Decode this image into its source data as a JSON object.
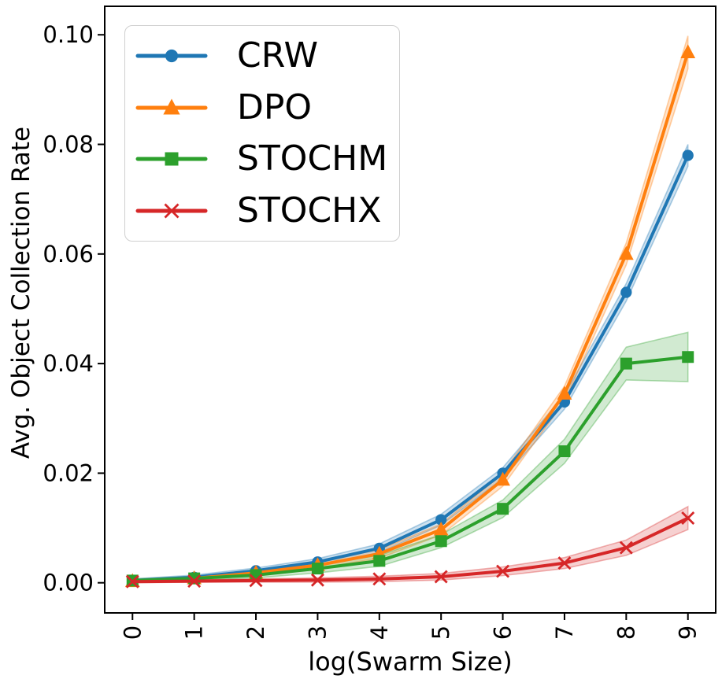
{
  "figure": {
    "background": "#ffffff",
    "spine_color": "#000000",
    "tick_color": "#000000"
  },
  "chart_data": {
    "type": "line",
    "title": "",
    "xlabel": "log(Swarm Size)",
    "ylabel": "Avg. Object Collection Rate",
    "xlim": [
      -0.45,
      9.45
    ],
    "ylim": [
      -0.0055,
      0.1052
    ],
    "grid": false,
    "legend_position": "upper left",
    "band_opacity": 0.22,
    "x": [
      0,
      1,
      2,
      3,
      4,
      5,
      6,
      7,
      8,
      9
    ],
    "xtick_labels": [
      "0",
      "1",
      "2",
      "3",
      "4",
      "5",
      "6",
      "7",
      "8",
      "9"
    ],
    "xtick_rotation": 90,
    "ytick_values": [
      0.0,
      0.02,
      0.04,
      0.06,
      0.08,
      0.1
    ],
    "ytick_labels": [
      "0.00",
      "0.02",
      "0.04",
      "0.06",
      "0.08",
      "0.10"
    ],
    "series": [
      {
        "name": "CRW",
        "color": "#1f77b4",
        "marker": "circle",
        "values": [
          0.0004,
          0.001,
          0.0022,
          0.0038,
          0.0063,
          0.0115,
          0.02,
          0.033,
          0.053,
          0.078
        ],
        "band": [
          0.0003,
          0.0004,
          0.0005,
          0.0006,
          0.0008,
          0.001,
          0.001,
          0.0013,
          0.0016,
          0.002
        ]
      },
      {
        "name": "DPO",
        "color": "#ff7f0e",
        "marker": "triangle-up",
        "values": [
          0.0003,
          0.0008,
          0.0018,
          0.0032,
          0.0053,
          0.0097,
          0.0188,
          0.0345,
          0.06,
          0.0968
        ],
        "band": [
          0.0002,
          0.0003,
          0.0005,
          0.0006,
          0.0008,
          0.001,
          0.0012,
          0.0014,
          0.002,
          0.003
        ]
      },
      {
        "name": "STOCHM",
        "color": "#2ca02c",
        "marker": "square",
        "values": [
          0.0004,
          0.0008,
          0.0014,
          0.0026,
          0.004,
          0.0076,
          0.0135,
          0.024,
          0.04,
          0.0412
        ],
        "band": [
          0.0003,
          0.0004,
          0.0005,
          0.0008,
          0.001,
          0.0012,
          0.0016,
          0.0022,
          0.003,
          0.0045
        ]
      },
      {
        "name": "STOCHX",
        "color": "#d62728",
        "marker": "x",
        "values": [
          0.0002,
          0.0003,
          0.0004,
          0.0005,
          0.0007,
          0.0011,
          0.0021,
          0.0036,
          0.0064,
          0.0118
        ],
        "band": [
          0.0002,
          0.0002,
          0.0003,
          0.0004,
          0.0005,
          0.0006,
          0.0008,
          0.001,
          0.0014,
          0.0021
        ]
      }
    ]
  }
}
